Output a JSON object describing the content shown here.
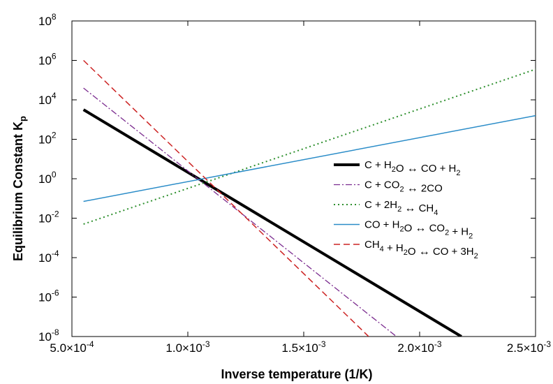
{
  "chart_data": {
    "type": "line",
    "xlabel": "Inverse temperature (1/K)",
    "ylabel": "Equilibrium Constant K",
    "ylabel_subscript": "p",
    "xlim": [
      0.0005,
      0.0025
    ],
    "ylim_log10": [
      -8,
      8
    ],
    "yscale": "log",
    "grid": false,
    "legend_position": "right",
    "x_ticks": [
      {
        "value": 0.0005,
        "mantissa": "5.0",
        "exp": "-4"
      },
      {
        "value": 0.001,
        "mantissa": "1.0",
        "exp": "-3"
      },
      {
        "value": 0.0015,
        "mantissa": "1.5",
        "exp": "-3"
      },
      {
        "value": 0.002,
        "mantissa": "2.0",
        "exp": "-3"
      },
      {
        "value": 0.0025,
        "mantissa": "2.5",
        "exp": "-3"
      }
    ],
    "x_tick_times": "×10",
    "y_ticks": [
      {
        "exp10": 8,
        "base": "10",
        "exp": "8"
      },
      {
        "exp10": 6,
        "base": "10",
        "exp": "6"
      },
      {
        "exp10": 4,
        "base": "10",
        "exp": "4"
      },
      {
        "exp10": 2,
        "base": "10",
        "exp": "2"
      },
      {
        "exp10": 0,
        "base": "10",
        "exp": "0"
      },
      {
        "exp10": -2,
        "base": "10",
        "exp": "-2"
      },
      {
        "exp10": -4,
        "base": "10",
        "exp": "-4"
      },
      {
        "exp10": -6,
        "base": "10",
        "exp": "-6"
      },
      {
        "exp10": -8,
        "base": "10",
        "exp": "-8"
      }
    ],
    "series": [
      {
        "name": [
          [
            "C + H"
          ],
          [
            "2",
            "sub"
          ],
          [
            "O "
          ],
          [
            "↔",
            "arrow"
          ],
          [
            " CO + H"
          ],
          [
            "2",
            "sub"
          ]
        ],
        "color": "#000000",
        "width": 4,
        "dash": "",
        "points_log10": [
          [
            0.00055,
            3.5
          ],
          [
            0.00218,
            -8.0
          ]
        ]
      },
      {
        "name": [
          [
            "C + CO"
          ],
          [
            "2",
            "sub"
          ],
          [
            " "
          ],
          [
            "↔",
            "arrow"
          ],
          [
            " 2CO"
          ]
        ],
        "color": "#7b2c8f",
        "width": 1.3,
        "dash": "9,3,2,3",
        "points_log10": [
          [
            0.00055,
            4.6
          ],
          [
            0.0019,
            -8.0
          ]
        ]
      },
      {
        "name": [
          [
            "C + 2H"
          ],
          [
            "2",
            "sub"
          ],
          [
            " "
          ],
          [
            "↔",
            "arrow"
          ],
          [
            " CH"
          ],
          [
            "4",
            "sub"
          ]
        ],
        "color": "#2d8f2d",
        "width": 2,
        "dash": "2,4",
        "points_log10": [
          [
            0.00055,
            -2.3
          ],
          [
            0.0025,
            5.55
          ]
        ]
      },
      {
        "name": [
          [
            "CO + H"
          ],
          [
            "2",
            "sub"
          ],
          [
            "O "
          ],
          [
            "↔",
            "arrow"
          ],
          [
            " CO"
          ],
          [
            "2",
            "sub"
          ],
          [
            " + H"
          ],
          [
            "2",
            "sub"
          ]
        ],
        "color": "#2a8cc8",
        "width": 1.5,
        "dash": "",
        "points_log10": [
          [
            0.00055,
            -1.15
          ],
          [
            0.0025,
            3.2
          ]
        ]
      },
      {
        "name": [
          [
            "CH"
          ],
          [
            "4",
            "sub"
          ],
          [
            " + H"
          ],
          [
            "2",
            "sub"
          ],
          [
            "O "
          ],
          [
            "↔",
            "arrow"
          ],
          [
            " CO + 3H"
          ],
          [
            "2",
            "sub"
          ]
        ],
        "color": "#cc2222",
        "width": 1.5,
        "dash": "9,5",
        "points_log10": [
          [
            0.00055,
            6.0
          ],
          [
            0.00178,
            -8.0
          ]
        ]
      }
    ]
  }
}
